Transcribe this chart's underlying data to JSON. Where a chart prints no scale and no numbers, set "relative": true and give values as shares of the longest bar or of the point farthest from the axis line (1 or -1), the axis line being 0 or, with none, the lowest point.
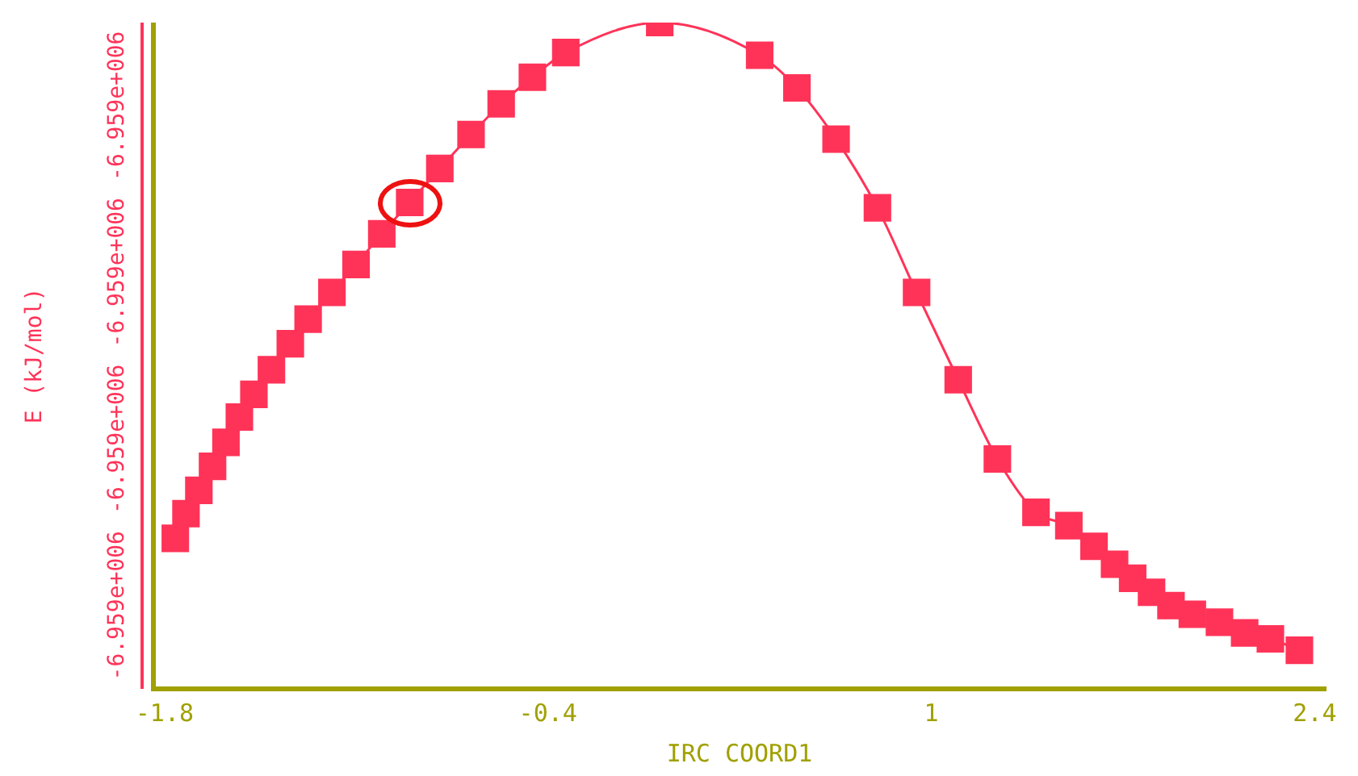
{
  "chart_data": {
    "type": "line",
    "relative": true,
    "xlabel": "IRC COORD1",
    "ylabel": "E (kJ/mol)",
    "marker": "square",
    "line_style": "solid",
    "grid": false,
    "legend": false,
    "xlim": [
      -1.841,
      2.44
    ],
    "xticks": [
      -1.8,
      -0.4,
      1,
      2.4
    ],
    "annotations": [
      "-6.959e+006",
      "-6.959e+006",
      "-6.959e+006",
      "-6.959e+006"
    ],
    "series": [
      {
        "color": "#ff3358",
        "x": [
          -1.761,
          -1.722,
          -1.675,
          -1.625,
          -1.576,
          -1.527,
          -1.474,
          -1.41,
          -1.341,
          -1.276,
          -1.189,
          -1.101,
          -1.007,
          -0.905,
          -0.795,
          -0.681,
          -0.571,
          -0.457,
          -0.335,
          0.008,
          0.373,
          0.509,
          0.652,
          0.803,
          0.946,
          1.098,
          1.241,
          1.382,
          1.502,
          1.594,
          1.669,
          1.735,
          1.804,
          1.875,
          1.953,
          2.052,
          2.144,
          2.238,
          2.344
        ],
        "values": [
          0.226,
          0.263,
          0.298,
          0.334,
          0.37,
          0.408,
          0.442,
          0.479,
          0.518,
          0.555,
          0.595,
          0.637,
          0.683,
          0.73,
          0.781,
          0.832,
          0.878,
          0.918,
          0.955,
          1,
          0.951,
          0.902,
          0.825,
          0.722,
          0.595,
          0.464,
          0.345,
          0.265,
          0.245,
          0.214,
          0.187,
          0.166,
          0.145,
          0.125,
          0.112,
          0.1,
          0.084,
          0.075,
          0.058
        ]
      }
    ]
  }
}
